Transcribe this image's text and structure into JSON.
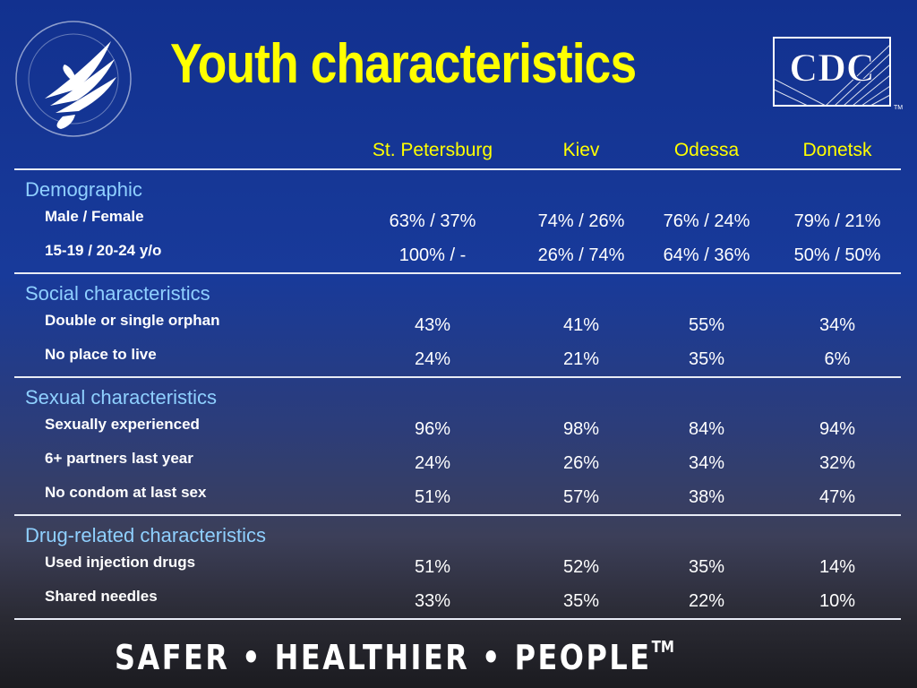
{
  "title": "Youth characteristics",
  "logos": {
    "hhs": {
      "icon": "hhs-eagle-seal-icon"
    },
    "cdc": {
      "text": "CDC",
      "tm": "TM",
      "icon": "cdc-logo-icon"
    }
  },
  "columns": [
    "St. Petersburg",
    "Kiev",
    "Odessa",
    "Donetsk"
  ],
  "sections": [
    {
      "title": "Demographic",
      "rows": [
        {
          "label": "Male / Female",
          "values": [
            "63% / 37%",
            "74% / 26%",
            "76% / 24%",
            "79% / 21%"
          ]
        },
        {
          "label": "15-19 / 20-24 y/o",
          "values": [
            "100% / -",
            "26% / 74%",
            "64% / 36%",
            "50% / 50%"
          ]
        }
      ]
    },
    {
      "title": "Social characteristics",
      "rows": [
        {
          "label": "Double or single orphan",
          "values": [
            "43%",
            "41%",
            "55%",
            "34%"
          ]
        },
        {
          "label": "No place to live",
          "values": [
            "24%",
            "21%",
            "35%",
            "6%"
          ]
        }
      ]
    },
    {
      "title": "Sexual characteristics",
      "rows": [
        {
          "label": "Sexually experienced",
          "values": [
            "96%",
            "98%",
            "84%",
            "94%"
          ]
        },
        {
          "label": "6+ partners last year",
          "values": [
            "24%",
            "26%",
            "34%",
            "32%"
          ]
        },
        {
          "label": "No condom at last sex",
          "values": [
            "51%",
            "57%",
            "38%",
            "47%"
          ]
        }
      ]
    },
    {
      "title": "Drug-related characteristics",
      "rows": [
        {
          "label": "Used injection drugs",
          "values": [
            "51%",
            "52%",
            "35%",
            "14%"
          ]
        },
        {
          "label": "Shared needles",
          "values": [
            "33%",
            "35%",
            "22%",
            "10%"
          ]
        }
      ]
    }
  ],
  "footer": {
    "text": "SAFER • HEALTHIER • PEOPLE",
    "tm": "TM"
  },
  "colors": {
    "title": "#ffff00",
    "header": "#ffff00",
    "section": "#8fd0ff",
    "text": "#ffffff"
  }
}
